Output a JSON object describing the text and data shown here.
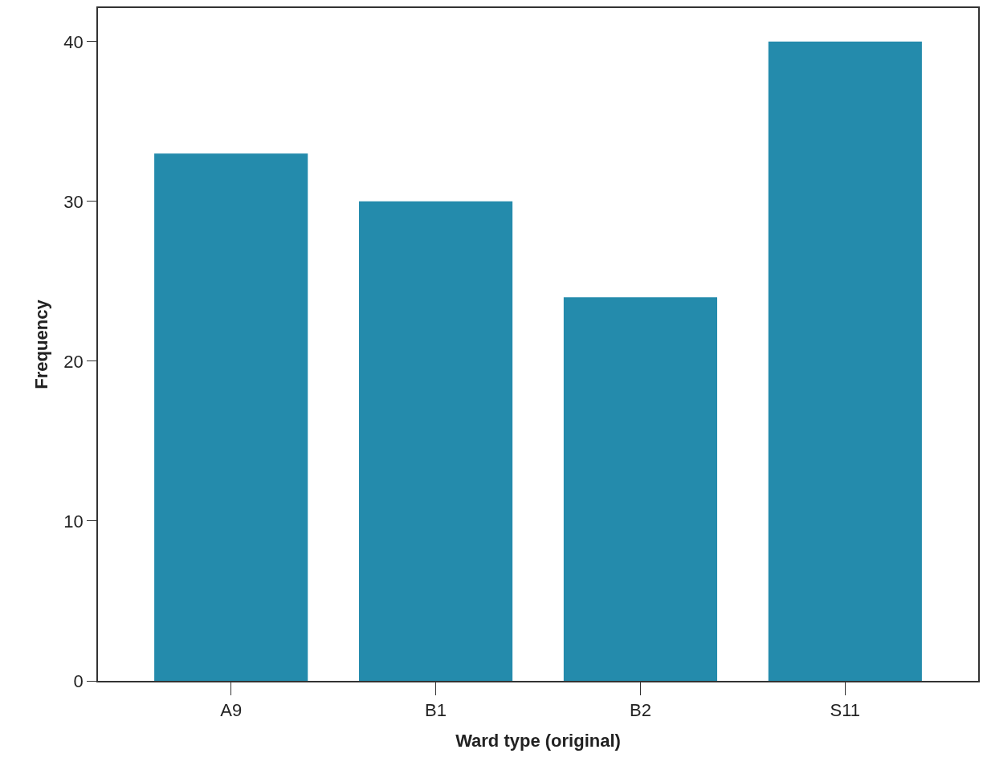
{
  "chart_data": {
    "type": "bar",
    "xlabel": "Ward type (original)",
    "ylabel": "Frequency",
    "categories": [
      "A9",
      "B1",
      "B2",
      "S11"
    ],
    "values": [
      33,
      30,
      24,
      40
    ],
    "color": "#248bac",
    "ylim": [
      0,
      42.1
    ],
    "yticks": [
      0,
      10,
      20,
      30,
      40
    ]
  }
}
